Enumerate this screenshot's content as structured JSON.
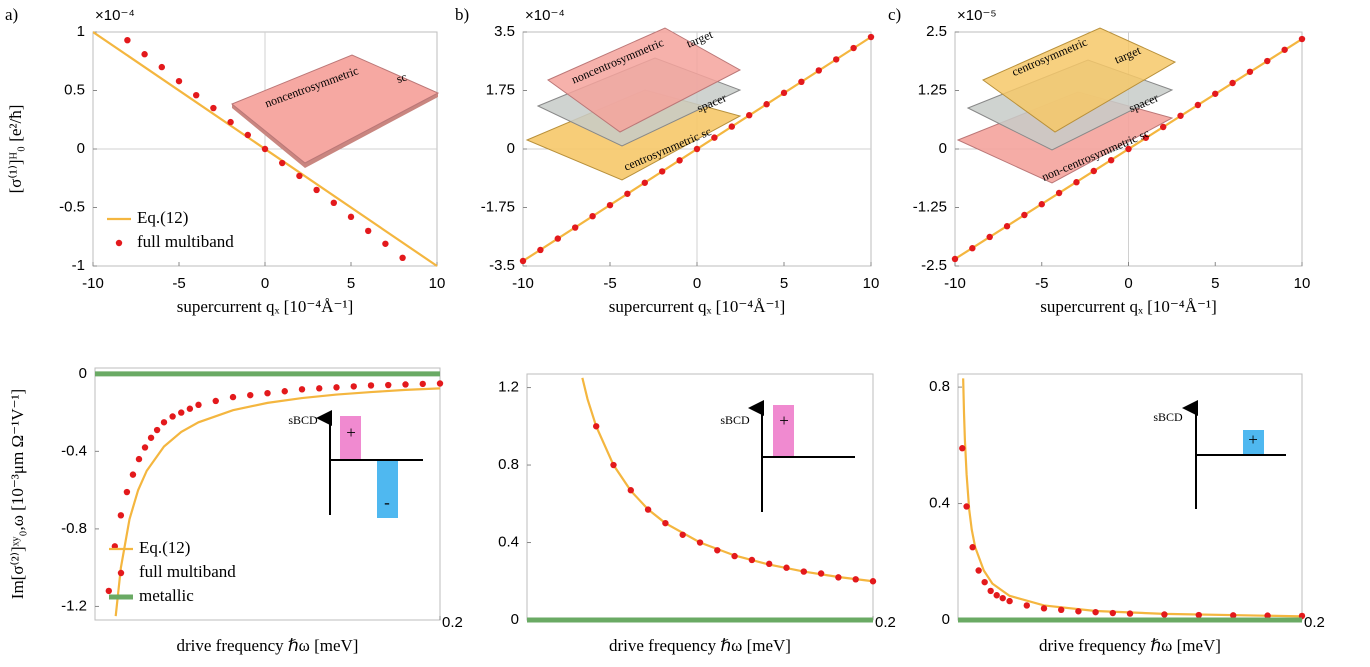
{
  "chart_data": [
    {
      "type": "line",
      "panel_label": "a)",
      "y_multiplier": "×10⁻⁴",
      "x_label": "supercurrent qₓ [10⁻⁴Å⁻¹]",
      "y_label": "[σ⁽¹⁾]ᴴ₀ [e²/ħ]",
      "xlim": [
        -10,
        10
      ],
      "xticks": [
        -10,
        -5,
        0,
        5,
        10
      ],
      "ylim": [
        -1,
        1
      ],
      "yticks": [
        -1,
        -0.5,
        0,
        0.5,
        1
      ],
      "zero_lines": true,
      "legend": "lower left",
      "series": [
        {
          "name": "Eq.(12)",
          "color": "#f4b63f",
          "mode": "line",
          "x": [
            -10,
            10
          ],
          "values": [
            1,
            -1
          ]
        },
        {
          "name": "full multiband",
          "color": "#e3191c",
          "mode": "markers",
          "x": [
            -8,
            -7,
            -6,
            -5,
            -4,
            -3,
            -2,
            -1,
            0,
            1,
            2,
            3,
            4,
            5,
            6,
            7,
            8
          ],
          "values": [
            0.93,
            0.81,
            0.7,
            0.58,
            0.46,
            0.35,
            0.23,
            0.12,
            0,
            -0.12,
            -0.23,
            -0.35,
            -0.46,
            -0.58,
            -0.7,
            -0.81,
            -0.93
          ]
        }
      ],
      "annotations": [
        "noncentrosymmetric",
        "sc"
      ]
    },
    {
      "type": "line",
      "panel_label": "b)",
      "y_multiplier": "×10⁻⁴",
      "x_label": "supercurrent qₓ [10⁻⁴Å⁻¹]",
      "xlim": [
        -10,
        10
      ],
      "xticks": [
        -10,
        -5,
        0,
        5,
        10
      ],
      "ylim": [
        -3.5,
        3.5
      ],
      "yticks": [
        -3.5,
        -1.75,
        0,
        1.75,
        3.5
      ],
      "zero_lines": true,
      "series": [
        {
          "color": "#f4b63f",
          "mode": "line",
          "x": [
            -10,
            10
          ],
          "values": [
            -3.35,
            3.35
          ]
        },
        {
          "color": "#e3191c",
          "mode": "markers",
          "x": [
            -10,
            -9,
            -8,
            -7,
            -6,
            -5,
            -4,
            -3,
            -2,
            -1,
            0,
            1,
            2,
            3,
            4,
            5,
            6,
            7,
            8,
            9,
            10
          ],
          "values": [
            -3.35,
            -3.02,
            -2.68,
            -2.35,
            -2.01,
            -1.68,
            -1.34,
            -1.01,
            -0.67,
            -0.34,
            0,
            0.34,
            0.67,
            1.01,
            1.34,
            1.68,
            2.01,
            2.35,
            2.68,
            3.02,
            3.35
          ]
        }
      ],
      "annotations": [
        "noncentrosymmetric",
        "target",
        "spacer",
        "centrosymmetric sc"
      ]
    },
    {
      "type": "line",
      "panel_label": "c)",
      "y_multiplier": "×10⁻⁵",
      "x_label": "supercurrent qₓ [10⁻⁴Å⁻¹]",
      "xlim": [
        -10,
        10
      ],
      "xticks": [
        -10,
        -5,
        0,
        5,
        10
      ],
      "ylim": [
        -2.5,
        2.5
      ],
      "yticks": [
        -2.5,
        -1.25,
        0,
        1.25,
        2.5
      ],
      "zero_lines": true,
      "series": [
        {
          "color": "#f4b63f",
          "mode": "line",
          "x": [
            -10,
            10
          ],
          "values": [
            -2.35,
            2.35
          ]
        },
        {
          "color": "#e3191c",
          "mode": "markers",
          "x": [
            -10,
            -9,
            -8,
            -7,
            -6,
            -5,
            -4,
            -3,
            -2,
            -1,
            0,
            1,
            2,
            3,
            4,
            5,
            6,
            7,
            8,
            9,
            10
          ],
          "values": [
            -2.35,
            -2.12,
            -1.88,
            -1.65,
            -1.41,
            -1.18,
            -0.94,
            -0.71,
            -0.47,
            -0.24,
            0,
            0.24,
            0.47,
            0.71,
            0.94,
            1.18,
            1.41,
            1.65,
            1.88,
            2.12,
            2.35
          ]
        }
      ],
      "annotations": [
        "centrosymmetric",
        "target",
        "spacer",
        "non-centrosymmetric sc"
      ]
    },
    {
      "type": "line",
      "x_label": "drive frequency ℏω [meV]",
      "y_label": "Im[σ⁽²⁾]ˣʸ₀,ω [10⁻³μm Ω⁻¹V⁻¹]",
      "xlim": [
        0,
        0.2
      ],
      "xticks": [
        0.2
      ],
      "ylim": [
        -1.27,
        0.03
      ],
      "yticks": [
        -1.2,
        -0.8,
        -0.4,
        0
      ],
      "zero_lines": false,
      "legend": "lower left",
      "series": [
        {
          "name": "Eq.(12)",
          "color": "#f4b63f",
          "mode": "line",
          "x": [
            0.012,
            0.015,
            0.02,
            0.025,
            0.03,
            0.04,
            0.05,
            0.06,
            0.08,
            0.1,
            0.12,
            0.14,
            0.16,
            0.18,
            0.2
          ],
          "values": [
            -1.25,
            -1.0,
            -0.75,
            -0.6,
            -0.5,
            -0.375,
            -0.3,
            -0.25,
            -0.1875,
            -0.15,
            -0.125,
            -0.107,
            -0.094,
            -0.083,
            -0.075
          ]
        },
        {
          "name": "full multiband",
          "color": "#e3191c",
          "mode": "markers",
          "x": [
            0.008,
            0.0115,
            0.015,
            0.0185,
            0.022,
            0.0255,
            0.029,
            0.0325,
            0.036,
            0.04,
            0.045,
            0.05,
            0.055,
            0.06,
            0.07,
            0.08,
            0.09,
            0.1,
            0.11,
            0.12,
            0.13,
            0.14,
            0.15,
            0.16,
            0.17,
            0.18,
            0.19,
            0.2
          ],
          "values": [
            -1.12,
            -0.89,
            -0.73,
            -0.61,
            -0.52,
            -0.44,
            -0.38,
            -0.33,
            -0.29,
            -0.25,
            -0.22,
            -0.2,
            -0.18,
            -0.16,
            -0.14,
            -0.12,
            -0.11,
            -0.1,
            -0.09,
            -0.08,
            -0.075,
            -0.07,
            -0.065,
            -0.06,
            -0.058,
            -0.055,
            -0.052,
            -0.05
          ]
        },
        {
          "name": "metallic",
          "color": "#6aaa64",
          "mode": "thick",
          "x": [
            0,
            0.2
          ],
          "values": [
            0,
            0
          ]
        }
      ],
      "annotations": [
        "sBCD",
        "+",
        "-"
      ]
    },
    {
      "type": "line",
      "x_label": "drive frequency ℏω [meV]",
      "xlim": [
        0,
        0.2
      ],
      "xticks": [
        0.2
      ],
      "ylim": [
        0,
        1.27
      ],
      "yticks": [
        0,
        0.4,
        0.8,
        1.2
      ],
      "zero_lines": false,
      "series": [
        {
          "color": "#f4b63f",
          "mode": "line",
          "x": [
            0.032,
            0.035,
            0.04,
            0.05,
            0.06,
            0.07,
            0.08,
            0.1,
            0.12,
            0.14,
            0.16,
            0.18,
            0.2
          ],
          "values": [
            1.25,
            1.14,
            1.0,
            0.8,
            0.667,
            0.571,
            0.5,
            0.4,
            0.333,
            0.286,
            0.25,
            0.222,
            0.2
          ]
        },
        {
          "color": "#e3191c",
          "mode": "markers",
          "x": [
            0.04,
            0.05,
            0.06,
            0.07,
            0.08,
            0.09,
            0.1,
            0.11,
            0.12,
            0.13,
            0.14,
            0.15,
            0.16,
            0.17,
            0.18,
            0.19,
            0.2
          ],
          "values": [
            1.0,
            0.8,
            0.67,
            0.57,
            0.5,
            0.44,
            0.4,
            0.36,
            0.33,
            0.31,
            0.29,
            0.27,
            0.25,
            0.24,
            0.22,
            0.21,
            0.2
          ]
        },
        {
          "color": "#6aaa64",
          "mode": "thick",
          "x": [
            0,
            0.2
          ],
          "values": [
            0,
            0
          ]
        }
      ],
      "annotations": [
        "sBCD",
        "+"
      ]
    },
    {
      "type": "line",
      "x_label": "drive frequency ℏω [meV]",
      "xlim": [
        0,
        0.2
      ],
      "xticks": [
        0.2
      ],
      "ylim": [
        0,
        0.845
      ],
      "yticks": [
        0,
        0.4,
        0.8
      ],
      "zero_lines": false,
      "series": [
        {
          "color": "#f4b63f",
          "mode": "line",
          "x": [
            0.003,
            0.0035,
            0.004,
            0.005,
            0.0065,
            0.008,
            0.01,
            0.015,
            0.02,
            0.03,
            0.05,
            0.08,
            0.12,
            0.2
          ],
          "values": [
            0.83,
            0.71,
            0.62,
            0.5,
            0.38,
            0.31,
            0.25,
            0.17,
            0.125,
            0.083,
            0.05,
            0.031,
            0.021,
            0.0125
          ]
        },
        {
          "color": "#e3191c",
          "mode": "markers",
          "x": [
            0.0025,
            0.005,
            0.0085,
            0.012,
            0.0155,
            0.019,
            0.0225,
            0.026,
            0.03,
            0.04,
            0.05,
            0.06,
            0.07,
            0.08,
            0.09,
            0.1,
            0.12,
            0.14,
            0.16,
            0.18,
            0.2
          ],
          "values": [
            0.59,
            0.39,
            0.25,
            0.17,
            0.13,
            0.1,
            0.085,
            0.075,
            0.065,
            0.05,
            0.04,
            0.035,
            0.03,
            0.027,
            0.024,
            0.022,
            0.019,
            0.017,
            0.016,
            0.015,
            0.014
          ]
        },
        {
          "color": "#6aaa64",
          "mode": "thick",
          "x": [
            0,
            0.2
          ],
          "values": [
            0,
            0
          ]
        }
      ],
      "annotations": [
        "sBCD",
        "+"
      ]
    }
  ]
}
